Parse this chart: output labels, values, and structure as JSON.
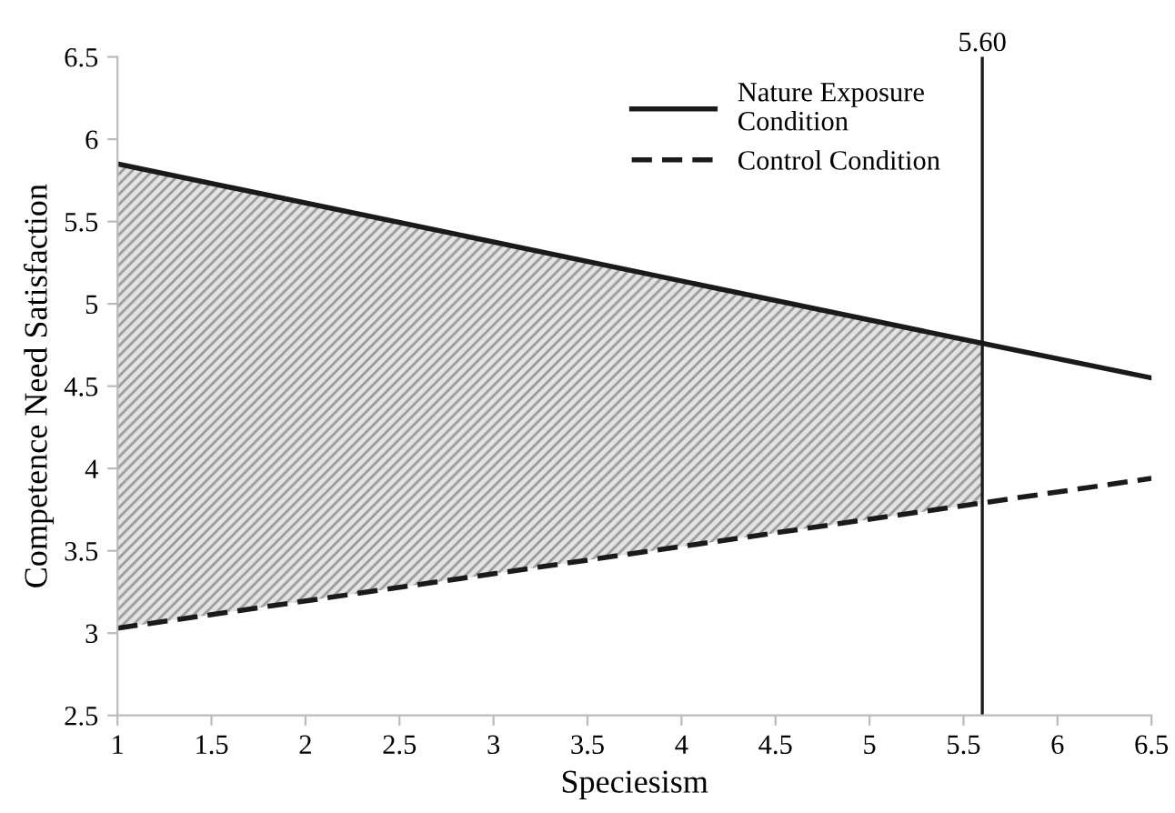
{
  "chart_data": {
    "type": "line",
    "xlabel": "Speciesism",
    "ylabel": "Competence Need Satisfaction",
    "x": [
      1,
      6.5
    ],
    "series": [
      {
        "name": "Nature Exposure\nCondition",
        "color": "#1a1a1a",
        "x": [
          1,
          5.6,
          6.5
        ],
        "values": [
          5.85,
          4.76,
          4.55
        ],
        "line_style": "solid",
        "lower": [
          3.03,
          3.79,
          null
        ],
        "upper": [
          5.85,
          4.76,
          null
        ]
      },
      {
        "name": "Control Condition",
        "color": "#1a1a1a",
        "values": [
          3.03,
          3.94
        ],
        "line_style": "dashed"
      }
    ],
    "xlim": [
      1,
      6.5
    ],
    "xticks": [
      1,
      1.5,
      2,
      2.5,
      3,
      3.5,
      4,
      4.5,
      5,
      5.5,
      6,
      6.5
    ],
    "ylim": [
      2.5,
      6.5
    ],
    "yticks": [
      2.5,
      3,
      3.5,
      4,
      4.5,
      5,
      5.5,
      6,
      6.5
    ],
    "ref_lines": [
      {
        "axis": "x",
        "value": 5.6,
        "label": "5.60",
        "color": "#1a1a1a"
      }
    ],
    "grid": false,
    "legend": "top right",
    "marker": "none"
  }
}
